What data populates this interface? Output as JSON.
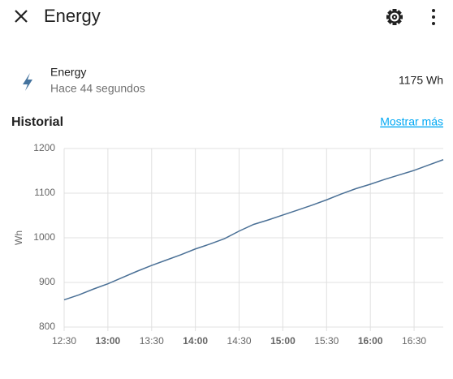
{
  "header": {
    "title": "Energy"
  },
  "entity": {
    "name": "Energy",
    "last_changed": "Hace 44 segundos",
    "state": "1175 Wh"
  },
  "history": {
    "title": "Historial",
    "link": "Mostrar más"
  },
  "chart_data": {
    "type": "line",
    "y_label": "Wh",
    "x": [
      "12:30",
      "12:40",
      "12:50",
      "13:00",
      "13:10",
      "13:20",
      "13:30",
      "13:40",
      "13:50",
      "14:00",
      "14:10",
      "14:20",
      "14:30",
      "14:40",
      "14:50",
      "15:00",
      "15:10",
      "15:20",
      "15:30",
      "15:40",
      "15:50",
      "16:00",
      "16:10",
      "16:20",
      "16:30",
      "16:40",
      "16:50"
    ],
    "series": [
      {
        "name": "Energy",
        "color": "#4a7096",
        "values": [
          861,
          872,
          885,
          897,
          911,
          925,
          938,
          950,
          962,
          975,
          986,
          998,
          1015,
          1030,
          1040,
          1051,
          1062,
          1073,
          1085,
          1098,
          1110,
          1120,
          1131,
          1141,
          1151,
          1163,
          1175
        ]
      }
    ],
    "xlim": [
      "12:30",
      "16:50"
    ],
    "xticks": [
      "12:30",
      "13:00",
      "13:30",
      "14:00",
      "14:30",
      "15:00",
      "15:30",
      "16:00",
      "16:30"
    ],
    "ylim": [
      800,
      1200
    ],
    "yticks": [
      800,
      900,
      1000,
      1100,
      1200
    ],
    "grid": true
  }
}
